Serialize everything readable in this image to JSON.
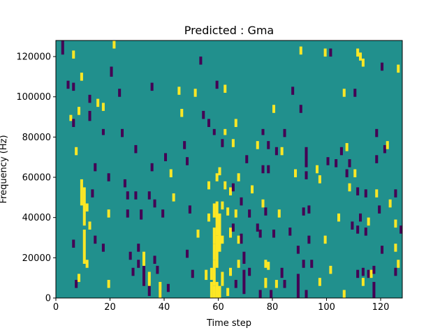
{
  "chart_data": {
    "type": "heatmap",
    "title": "Predicted : Gma",
    "xlabel": "Time step",
    "ylabel": "Frequency (Hz)",
    "xlim": [
      0,
      128
    ],
    "ylim": [
      0,
      128000
    ],
    "n_time": 128,
    "n_freq": 128,
    "freq_bin_hz": 1000,
    "xticks": [
      0,
      20,
      40,
      60,
      80,
      100,
      120
    ],
    "yticks": [
      0,
      20000,
      40000,
      60000,
      80000,
      100000,
      120000
    ],
    "ytick_labels": [
      "0",
      "20000",
      "40000",
      "60000",
      "80000",
      "100000",
      "120000"
    ],
    "colors": {
      "background": "#21908d",
      "high": "#fde725",
      "low": "#440154"
    },
    "segments": [
      {
        "t": 2,
        "f0": 121,
        "f1": 128,
        "v": "low"
      },
      {
        "t": 4,
        "f0": 104,
        "f1": 108,
        "v": "low"
      },
      {
        "t": 5,
        "f0": 88,
        "f1": 91,
        "v": "high"
      },
      {
        "t": 6,
        "f0": 119,
        "f1": 123,
        "v": "high"
      },
      {
        "t": 6,
        "f0": 103,
        "f1": 107,
        "v": "low"
      },
      {
        "t": 6,
        "f0": 85,
        "f1": 89,
        "v": "low"
      },
      {
        "t": 6,
        "f0": 25,
        "f1": 29,
        "v": "low"
      },
      {
        "t": 7,
        "f0": 5,
        "f1": 9,
        "v": "low"
      },
      {
        "t": 7,
        "f0": 71,
        "f1": 75,
        "v": "high"
      },
      {
        "t": 8,
        "f0": 91,
        "f1": 95,
        "v": "high"
      },
      {
        "t": 8,
        "f0": 8,
        "f1": 12,
        "v": "high"
      },
      {
        "t": 9,
        "f0": 108,
        "f1": 112,
        "v": "high"
      },
      {
        "t": 9,
        "f0": 46,
        "f1": 59,
        "v": "high"
      },
      {
        "t": 10,
        "f0": 36,
        "f1": 55,
        "v": "high"
      },
      {
        "t": 10,
        "f0": 17,
        "f1": 34,
        "v": "high"
      },
      {
        "t": 11,
        "f0": 43,
        "f1": 47,
        "v": "high"
      },
      {
        "t": 11,
        "f0": 15,
        "f1": 19,
        "v": "high"
      },
      {
        "t": 12,
        "f0": 97,
        "f1": 101,
        "v": "low"
      },
      {
        "t": 12,
        "f0": 88,
        "f1": 93,
        "v": "low"
      },
      {
        "t": 12,
        "f0": 34,
        "f1": 38,
        "v": "high"
      },
      {
        "t": 13,
        "f0": 50,
        "f1": 54,
        "v": "low"
      },
      {
        "t": 14,
        "f0": 63,
        "f1": 67,
        "v": "low"
      },
      {
        "t": 14,
        "f0": 27,
        "f1": 31,
        "v": "low"
      },
      {
        "t": 15,
        "f0": 95,
        "f1": 99,
        "v": "high"
      },
      {
        "t": 17,
        "f0": 93,
        "f1": 97,
        "v": "high"
      },
      {
        "t": 17,
        "f0": 81,
        "f1": 84,
        "v": "low"
      },
      {
        "t": 17,
        "f0": 23,
        "f1": 27,
        "v": "low"
      },
      {
        "t": 19,
        "f0": 58,
        "f1": 62,
        "v": "low"
      },
      {
        "t": 19,
        "f0": 40,
        "f1": 44,
        "v": "high"
      },
      {
        "t": 19,
        "f0": 5,
        "f1": 9,
        "v": "high"
      },
      {
        "t": 20,
        "f0": 110,
        "f1": 115,
        "v": "low"
      },
      {
        "t": 21,
        "f0": 124,
        "f1": 128,
        "v": "high"
      },
      {
        "t": 23,
        "f0": 100,
        "f1": 104,
        "v": "low"
      },
      {
        "t": 24,
        "f0": 80,
        "f1": 84,
        "v": "low"
      },
      {
        "t": 25,
        "f0": 55,
        "f1": 59,
        "v": "low"
      },
      {
        "t": 26,
        "f0": 49,
        "f1": 53,
        "v": "low"
      },
      {
        "t": 26,
        "f0": 40,
        "f1": 44,
        "v": "low"
      },
      {
        "t": 27,
        "f0": 19,
        "f1": 23,
        "v": "low"
      },
      {
        "t": 28,
        "f0": 11,
        "f1": 15,
        "v": "low"
      },
      {
        "t": 29,
        "f0": 72,
        "f1": 76,
        "v": "low"
      },
      {
        "t": 29,
        "f0": 49,
        "f1": 53,
        "v": "low"
      },
      {
        "t": 30,
        "f0": 23,
        "f1": 27,
        "v": "low"
      },
      {
        "t": 30,
        "f0": 15,
        "f1": 19,
        "v": "low"
      },
      {
        "t": 31,
        "f0": 39,
        "f1": 44,
        "v": "low"
      },
      {
        "t": 32,
        "f0": 6,
        "f1": 16,
        "v": "low"
      },
      {
        "t": 32,
        "f0": 16,
        "f1": 23,
        "v": "high"
      },
      {
        "t": 34,
        "f0": 49,
        "f1": 53,
        "v": "low"
      },
      {
        "t": 34,
        "f0": 1,
        "f1": 7,
        "v": "low"
      },
      {
        "t": 34,
        "f0": 6,
        "f1": 13,
        "v": "high"
      },
      {
        "t": 35,
        "f0": 103,
        "f1": 107,
        "v": "low"
      },
      {
        "t": 35,
        "f0": 63,
        "f1": 67,
        "v": "low"
      },
      {
        "t": 36,
        "f0": 45,
        "f1": 49,
        "v": "low"
      },
      {
        "t": 36,
        "f0": 17,
        "f1": 21,
        "v": "low"
      },
      {
        "t": 37,
        "f0": 12,
        "f1": 16,
        "v": "low"
      },
      {
        "t": 38,
        "f0": 0,
        "f1": 4,
        "v": "low"
      },
      {
        "t": 38,
        "f0": 0,
        "f1": 8,
        "v": "high"
      },
      {
        "t": 39,
        "f0": 40,
        "f1": 44,
        "v": "low"
      },
      {
        "t": 40,
        "f0": 68,
        "f1": 72,
        "v": "low"
      },
      {
        "t": 41,
        "f0": 3,
        "f1": 7,
        "v": "low"
      },
      {
        "t": 42,
        "f0": 60,
        "f1": 64,
        "v": "high"
      },
      {
        "t": 43,
        "f0": 48,
        "f1": 52,
        "v": "high"
      },
      {
        "t": 45,
        "f0": 101,
        "f1": 105,
        "v": "high"
      },
      {
        "t": 46,
        "f0": 90,
        "f1": 94,
        "v": "high"
      },
      {
        "t": 47,
        "f0": 74,
        "f1": 78,
        "v": "low"
      },
      {
        "t": 48,
        "f0": 66,
        "f1": 70,
        "v": "low"
      },
      {
        "t": 48,
        "f0": 20,
        "f1": 24,
        "v": "low"
      },
      {
        "t": 49,
        "f0": 42,
        "f1": 46,
        "v": "low"
      },
      {
        "t": 50,
        "f0": 10,
        "f1": 14,
        "v": "low"
      },
      {
        "t": 51,
        "f0": 100,
        "f1": 104,
        "v": "high"
      },
      {
        "t": 52,
        "f0": 30,
        "f1": 34,
        "v": "high"
      },
      {
        "t": 53,
        "f0": 116,
        "f1": 120,
        "v": "low"
      },
      {
        "t": 54,
        "f0": 89,
        "f1": 93,
        "v": "low"
      },
      {
        "t": 55,
        "f0": 9,
        "f1": 14,
        "v": "high"
      },
      {
        "t": 56,
        "f0": 85,
        "f1": 89,
        "v": "low"
      },
      {
        "t": 56,
        "f0": 54,
        "f1": 58,
        "v": "high"
      },
      {
        "t": 56,
        "f0": 38,
        "f1": 42,
        "v": "high"
      },
      {
        "t": 57,
        "f0": 9,
        "f1": 15,
        "v": "high"
      },
      {
        "t": 57,
        "f0": 0,
        "f1": 8,
        "v": "high"
      },
      {
        "t": 58,
        "f0": 81,
        "f1": 84,
        "v": "low"
      },
      {
        "t": 58,
        "f0": 40,
        "f1": 47,
        "v": "high"
      },
      {
        "t": 58,
        "f0": 27,
        "f1": 35,
        "v": "high"
      },
      {
        "t": 58,
        "f0": 19,
        "f1": 27,
        "v": "high"
      },
      {
        "t": 58,
        "f0": 6,
        "f1": 19,
        "v": "high"
      },
      {
        "t": 58,
        "f0": 0,
        "f1": 6,
        "v": "high"
      },
      {
        "t": 59,
        "f0": 104,
        "f1": 108,
        "v": "low"
      },
      {
        "t": 59,
        "f0": 58,
        "f1": 62,
        "v": "high"
      },
      {
        "t": 59,
        "f0": 31,
        "f1": 48,
        "v": "high"
      },
      {
        "t": 59,
        "f0": 15,
        "f1": 31,
        "v": "high"
      },
      {
        "t": 59,
        "f0": 0,
        "f1": 8,
        "v": "high"
      },
      {
        "t": 60,
        "f0": 61,
        "f1": 65,
        "v": "high"
      },
      {
        "t": 60,
        "f0": 23,
        "f1": 42,
        "v": "high"
      },
      {
        "t": 60,
        "f0": 0,
        "f1": 6,
        "v": "high"
      },
      {
        "t": 61,
        "f0": 75,
        "f1": 79,
        "v": "low"
      },
      {
        "t": 61,
        "f0": 44,
        "f1": 48,
        "v": "high"
      },
      {
        "t": 61,
        "f0": 27,
        "f1": 31,
        "v": "high"
      },
      {
        "t": 61,
        "f0": 6,
        "f1": 13,
        "v": "high"
      },
      {
        "t": 62,
        "f0": 102,
        "f1": 106,
        "v": "high"
      },
      {
        "t": 62,
        "f0": 81,
        "f1": 84,
        "v": "high"
      },
      {
        "t": 62,
        "f0": 54,
        "f1": 58,
        "v": "high"
      },
      {
        "t": 63,
        "f0": 41,
        "f1": 45,
        "v": "high"
      },
      {
        "t": 63,
        "f0": 1,
        "f1": 5,
        "v": "high"
      },
      {
        "t": 64,
        "f0": 51,
        "f1": 55,
        "v": "high"
      },
      {
        "t": 64,
        "f0": 30,
        "f1": 35,
        "v": "high"
      },
      {
        "t": 64,
        "f0": 11,
        "f1": 15,
        "v": "high"
      },
      {
        "t": 65,
        "f0": 75,
        "f1": 79,
        "v": "high"
      },
      {
        "t": 65,
        "f0": 53,
        "f1": 57,
        "v": "low"
      },
      {
        "t": 65,
        "f0": 33,
        "f1": 37,
        "v": "low"
      },
      {
        "t": 66,
        "f0": 85,
        "f1": 89,
        "v": "high"
      },
      {
        "t": 66,
        "f0": 40,
        "f1": 44,
        "v": "high"
      },
      {
        "t": 66,
        "f0": 5,
        "f1": 9,
        "v": "low"
      },
      {
        "t": 67,
        "f0": 58,
        "f1": 62,
        "v": "high"
      },
      {
        "t": 67,
        "f0": 27,
        "f1": 31,
        "v": "high"
      },
      {
        "t": 67,
        "f0": 15,
        "f1": 19,
        "v": "high"
      },
      {
        "t": 68,
        "f0": 46,
        "f1": 50,
        "v": "low"
      },
      {
        "t": 68,
        "f0": 27,
        "f1": 32,
        "v": "low"
      },
      {
        "t": 69,
        "f0": 17,
        "f1": 23,
        "v": "low"
      },
      {
        "t": 69,
        "f0": 2,
        "f1": 14,
        "v": "low"
      },
      {
        "t": 70,
        "f0": 67,
        "f1": 71,
        "v": "low"
      },
      {
        "t": 71,
        "f0": 40,
        "f1": 44,
        "v": "low"
      },
      {
        "t": 71,
        "f0": 11,
        "f1": 15,
        "v": "low"
      },
      {
        "t": 72,
        "f0": 52,
        "f1": 56,
        "v": "high"
      },
      {
        "t": 74,
        "f0": 74,
        "f1": 78,
        "v": "high"
      },
      {
        "t": 74,
        "f0": 33,
        "f1": 37,
        "v": "low"
      },
      {
        "t": 75,
        "f0": 30,
        "f1": 34,
        "v": "low"
      },
      {
        "t": 75,
        "f0": 0,
        "f1": 4,
        "v": "low"
      },
      {
        "t": 76,
        "f0": 81,
        "f1": 84,
        "v": "low"
      },
      {
        "t": 76,
        "f0": 62,
        "f1": 66,
        "v": "low"
      },
      {
        "t": 76,
        "f0": 45,
        "f1": 49,
        "v": "high"
      },
      {
        "t": 77,
        "f0": 41,
        "f1": 45,
        "v": "low"
      },
      {
        "t": 77,
        "f0": 15,
        "f1": 19,
        "v": "high"
      },
      {
        "t": 77,
        "f0": 5,
        "f1": 10,
        "v": "high"
      },
      {
        "t": 78,
        "f0": 74,
        "f1": 78,
        "v": "low"
      },
      {
        "t": 78,
        "f0": 62,
        "f1": 66,
        "v": "low"
      },
      {
        "t": 78,
        "f0": 14,
        "f1": 18,
        "v": "high"
      },
      {
        "t": 79,
        "f0": 0,
        "f1": 4,
        "v": "low"
      },
      {
        "t": 80,
        "f0": 92,
        "f1": 96,
        "v": "high"
      },
      {
        "t": 80,
        "f0": 30,
        "f1": 34,
        "v": "low"
      },
      {
        "t": 81,
        "f0": 71,
        "f1": 75,
        "v": "low"
      },
      {
        "t": 81,
        "f0": 5,
        "f1": 9,
        "v": "high"
      },
      {
        "t": 82,
        "f0": 40,
        "f1": 44,
        "v": "high"
      },
      {
        "t": 83,
        "f0": 71,
        "f1": 75,
        "v": "high"
      },
      {
        "t": 83,
        "f0": 10,
        "f1": 15,
        "v": "low"
      },
      {
        "t": 84,
        "f0": 80,
        "f1": 84,
        "v": "low"
      },
      {
        "t": 84,
        "f0": 5,
        "f1": 9,
        "v": "low"
      },
      {
        "t": 86,
        "f0": 31,
        "f1": 35,
        "v": "low"
      },
      {
        "t": 87,
        "f0": 101,
        "f1": 105,
        "v": "low"
      },
      {
        "t": 88,
        "f0": 60,
        "f1": 64,
        "v": "high"
      },
      {
        "t": 89,
        "f0": 22,
        "f1": 26,
        "v": "low"
      },
      {
        "t": 89,
        "f0": 0,
        "f1": 12,
        "v": "low"
      },
      {
        "t": 90,
        "f0": 121,
        "f1": 125,
        "v": "high"
      },
      {
        "t": 90,
        "f0": 92,
        "f1": 96,
        "v": "low"
      },
      {
        "t": 91,
        "f0": 41,
        "f1": 45,
        "v": "low"
      },
      {
        "t": 91,
        "f0": 15,
        "f1": 19,
        "v": "low"
      },
      {
        "t": 92,
        "f0": 65,
        "f1": 75,
        "v": "low"
      },
      {
        "t": 92,
        "f0": 59,
        "f1": 63,
        "v": "low"
      },
      {
        "t": 92,
        "f0": 0,
        "f1": 4,
        "v": "low"
      },
      {
        "t": 93,
        "f0": 42,
        "f1": 46,
        "v": "low"
      },
      {
        "t": 93,
        "f0": 27,
        "f1": 31,
        "v": "low"
      },
      {
        "t": 94,
        "f0": 15,
        "f1": 19,
        "v": "low"
      },
      {
        "t": 96,
        "f0": 62,
        "f1": 66,
        "v": "high"
      },
      {
        "t": 97,
        "f0": 57,
        "f1": 61,
        "v": "high"
      },
      {
        "t": 97,
        "f0": 6,
        "f1": 10,
        "v": "high"
      },
      {
        "t": 99,
        "f0": 120,
        "f1": 124,
        "v": "high"
      },
      {
        "t": 99,
        "f0": 27,
        "f1": 31,
        "v": "high"
      },
      {
        "t": 100,
        "f0": 66,
        "f1": 70,
        "v": "low"
      },
      {
        "t": 101,
        "f0": 120,
        "f1": 124,
        "v": "low"
      },
      {
        "t": 101,
        "f0": 12,
        "f1": 16,
        "v": "high"
      },
      {
        "t": 103,
        "f0": 65,
        "f1": 69,
        "v": "low"
      },
      {
        "t": 104,
        "f0": 38,
        "f1": 42,
        "v": "high"
      },
      {
        "t": 105,
        "f0": 71,
        "f1": 75,
        "v": "low"
      },
      {
        "t": 106,
        "f0": 100,
        "f1": 104,
        "v": "high"
      },
      {
        "t": 106,
        "f0": 0,
        "f1": 4,
        "v": "high"
      },
      {
        "t": 107,
        "f0": 73,
        "f1": 77,
        "v": "high"
      },
      {
        "t": 107,
        "f0": 60,
        "f1": 64,
        "v": "low"
      },
      {
        "t": 108,
        "f0": 65,
        "f1": 69,
        "v": "low"
      },
      {
        "t": 108,
        "f0": 53,
        "f1": 57,
        "v": "high"
      },
      {
        "t": 109,
        "f0": 34,
        "f1": 38,
        "v": "low"
      },
      {
        "t": 110,
        "f0": 100,
        "f1": 104,
        "v": "low"
      },
      {
        "t": 110,
        "f0": 60,
        "f1": 64,
        "v": "high"
      },
      {
        "t": 111,
        "f0": 120,
        "f1": 124,
        "v": "high"
      },
      {
        "t": 111,
        "f0": 51,
        "f1": 55,
        "v": "low"
      },
      {
        "t": 111,
        "f0": 32,
        "f1": 36,
        "v": "low"
      },
      {
        "t": 111,
        "f0": 10,
        "f1": 14,
        "v": "low"
      },
      {
        "t": 112,
        "f0": 118,
        "f1": 122,
        "v": "high"
      },
      {
        "t": 112,
        "f0": 38,
        "f1": 42,
        "v": "low"
      },
      {
        "t": 113,
        "f0": 115,
        "f1": 119,
        "v": "high"
      },
      {
        "t": 113,
        "f0": 11,
        "f1": 15,
        "v": "low"
      },
      {
        "t": 113,
        "f0": 6,
        "f1": 10,
        "v": "high"
      },
      {
        "t": 114,
        "f0": 50,
        "f1": 54,
        "v": "low"
      },
      {
        "t": 114,
        "f0": 31,
        "f1": 35,
        "v": "low"
      },
      {
        "t": 115,
        "f0": 10,
        "f1": 14,
        "v": "low"
      },
      {
        "t": 115,
        "f0": 36,
        "f1": 40,
        "v": "high"
      },
      {
        "t": 116,
        "f0": 10,
        "f1": 14,
        "v": "high"
      },
      {
        "t": 117,
        "f0": 0,
        "f1": 8,
        "v": "low"
      },
      {
        "t": 117,
        "f0": 12,
        "f1": 16,
        "v": "low"
      },
      {
        "t": 118,
        "f0": 80,
        "f1": 84,
        "v": "low"
      },
      {
        "t": 118,
        "f0": 67,
        "f1": 71,
        "v": "low"
      },
      {
        "t": 118,
        "f0": 50,
        "f1": 54,
        "v": "high"
      },
      {
        "t": 119,
        "f0": 42,
        "f1": 46,
        "v": "low"
      },
      {
        "t": 120,
        "f0": 113,
        "f1": 117,
        "v": "low"
      },
      {
        "t": 120,
        "f0": 22,
        "f1": 26,
        "v": "low"
      },
      {
        "t": 121,
        "f0": 72,
        "f1": 76,
        "v": "low"
      },
      {
        "t": 122,
        "f0": 74,
        "f1": 78,
        "v": "high"
      },
      {
        "t": 123,
        "f0": 45,
        "f1": 49,
        "v": "high"
      },
      {
        "t": 125,
        "f0": 50,
        "f1": 54,
        "v": "low"
      },
      {
        "t": 125,
        "f0": 35,
        "f1": 39,
        "v": "high"
      },
      {
        "t": 125,
        "f0": 23,
        "f1": 27,
        "v": "high"
      },
      {
        "t": 125,
        "f0": 11,
        "f1": 15,
        "v": "low"
      },
      {
        "t": 126,
        "f0": 112,
        "f1": 116,
        "v": "high"
      },
      {
        "t": 126,
        "f0": 15,
        "f1": 19,
        "v": "high"
      },
      {
        "t": 127,
        "f0": 32,
        "f1": 36,
        "v": "low"
      }
    ]
  }
}
